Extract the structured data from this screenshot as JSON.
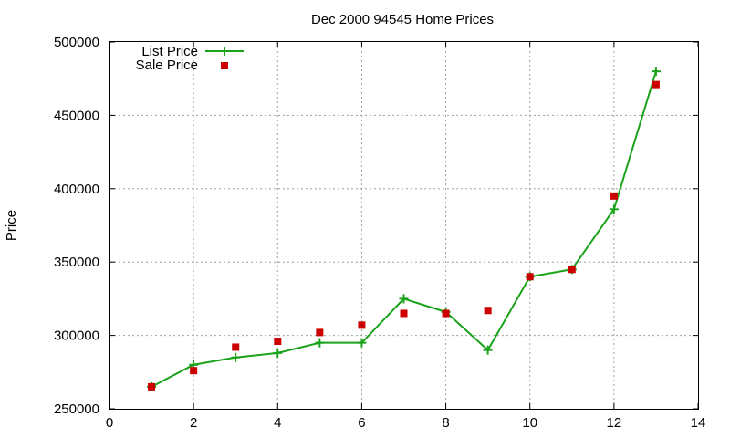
{
  "chart_data": {
    "type": "line",
    "title": "Dec 2000 94545 Home Prices",
    "xlabel": "",
    "ylabel": "Price",
    "xlim": [
      0,
      14
    ],
    "ylim": [
      250000,
      500000
    ],
    "x_ticks": [
      0,
      2,
      4,
      6,
      8,
      10,
      12,
      14
    ],
    "y_ticks": [
      250000,
      300000,
      350000,
      400000,
      450000,
      500000
    ],
    "grid": true,
    "legend_position": "top-left",
    "series": [
      {
        "name": "List Price",
        "style": "line-with-plus-markers",
        "color": "#1aa31a",
        "x": [
          1,
          2,
          3,
          4,
          5,
          6,
          7,
          8,
          9,
          10,
          11,
          12,
          13
        ],
        "values": [
          265000,
          280000,
          285000,
          288000,
          295000,
          295000,
          325000,
          316000,
          290000,
          340000,
          345000,
          386000,
          480000
        ]
      },
      {
        "name": "Sale Price",
        "style": "square-markers",
        "color": "#cc0000",
        "x": [
          1,
          2,
          3,
          4,
          5,
          6,
          7,
          8,
          9,
          10,
          11,
          12,
          13
        ],
        "values": [
          265000,
          276000,
          292000,
          296000,
          302000,
          307000,
          315000,
          315000,
          317000,
          340000,
          345000,
          395000,
          471000
        ]
      }
    ]
  }
}
